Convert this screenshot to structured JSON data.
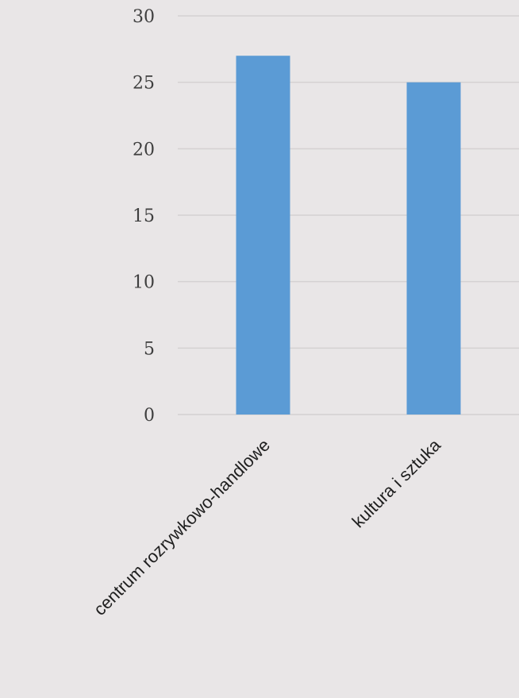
{
  "chart_data": {
    "type": "bar",
    "categories": [
      "centrum rozrywkowo-handlowe",
      "kultura i sztuka"
    ],
    "values": [
      27,
      25
    ],
    "ylim": [
      0,
      30
    ],
    "yticks": [
      0,
      5,
      10,
      15,
      20,
      25,
      30
    ],
    "grid": true,
    "legend": "none",
    "bar_color": "#5B9BD5",
    "background_color": "#E9E6E7",
    "grid_color": "#D4D1D2"
  }
}
